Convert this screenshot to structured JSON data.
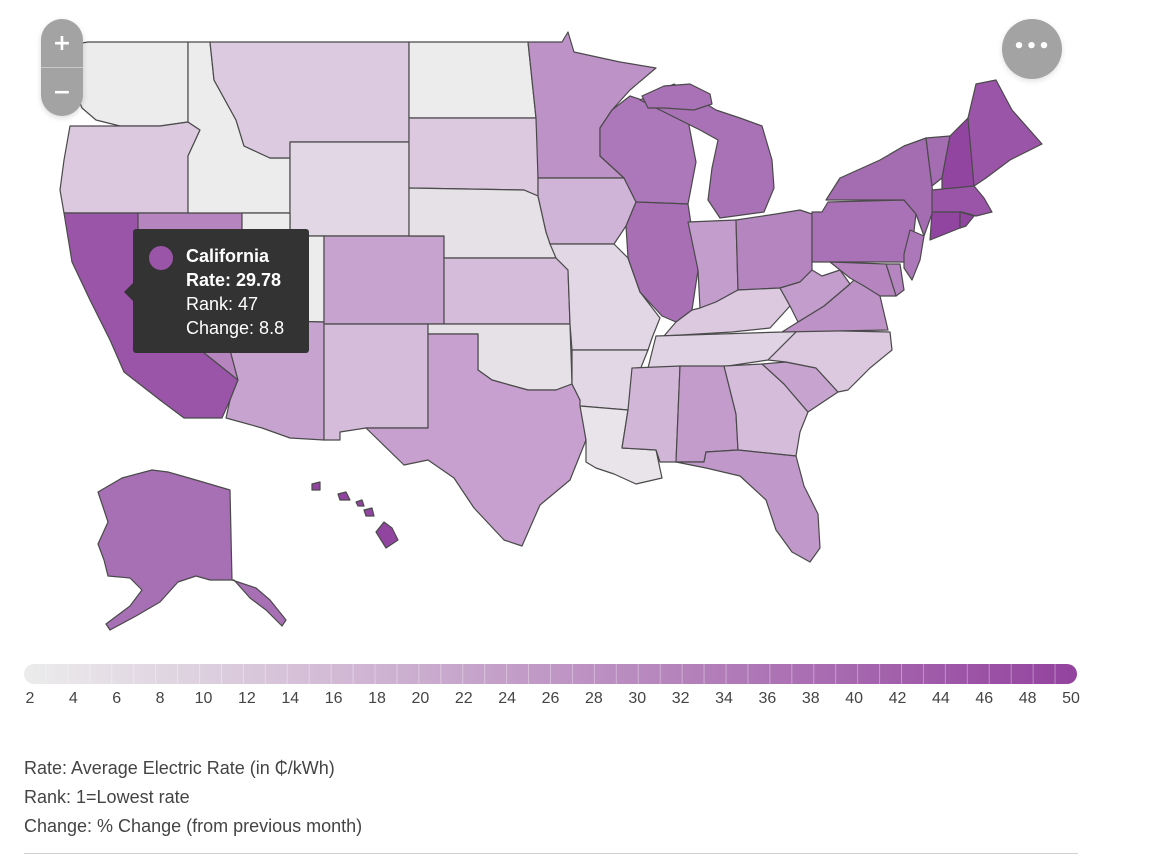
{
  "controls": {
    "zoom_in": "+",
    "zoom_out": "−",
    "menu": "•••"
  },
  "tooltip": {
    "state": "California",
    "rate_line": "Rate: 29.78",
    "rank_line": "Rank: 47",
    "change_line": "Change: 8.8",
    "color": "#9b55a8"
  },
  "legend": {
    "ticks": [
      "2",
      "4",
      "6",
      "8",
      "10",
      "12",
      "14",
      "16",
      "18",
      "20",
      "22",
      "24",
      "26",
      "28",
      "30",
      "32",
      "34",
      "36",
      "38",
      "40",
      "42",
      "44",
      "46",
      "48",
      "50"
    ],
    "color_low": "#ececec",
    "color_high": "#93439e"
  },
  "notes": [
    "Rate: Average Electric Rate (in ₵/kWh)",
    "Rank: 1=Lowest rate",
    "Change: % Change (from previous month)"
  ],
  "map": {
    "selected": "California",
    "state_colors": {
      "Washington": "#ececec",
      "Oregon": "#dcc9e0",
      "California": "#9b55a8",
      "Nevada": "#b685c0",
      "Idaho": "#ececec",
      "Montana": "#dccbe0",
      "Wyoming": "#e2d7e4",
      "Utah": "#ececec",
      "Arizona": "#c7a4cf",
      "Colorado": "#c7a4cf",
      "New Mexico": "#d5bcdb",
      "North Dakota": "#ececec",
      "South Dakota": "#dcc9e0",
      "Nebraska": "#e6e0e7",
      "Kansas": "#d5bcdb",
      "Oklahoma": "#e6e0e7",
      "Texas": "#c7a0cf",
      "Minnesota": "#bd92c6",
      "Iowa": "#d0b4d7",
      "Missouri": "#e2d7e4",
      "Arkansas": "#e2d7e4",
      "Louisiana": "#e8e4e9",
      "Wisconsin": "#ad78b9",
      "Illinois": "#a96fb5",
      "Michigan": "#aa72b6",
      "Indiana": "#c39dcc",
      "Ohio": "#b585bf",
      "Kentucky": "#dcc9e0",
      "Tennessee": "#e0d3e3",
      "Mississippi": "#d2b6d8",
      "Alabama": "#c39ccc",
      "Georgia": "#d5bcdb",
      "Florida": "#c098c9",
      "South Carolina": "#c7a4cf",
      "North Carolina": "#dcc9e0",
      "Virginia": "#bd92c6",
      "West Virginia": "#c39dcc",
      "Pennsylvania": "#aa72b6",
      "New York": "#a46cb1",
      "Vermont": "#a46cb1",
      "New Hampshire": "#9245a0",
      "Maine": "#9b55a8",
      "Massachusetts": "#9b55a8",
      "Connecticut": "#9245a0",
      "Rhode Island": "#9245a0",
      "New Jersey": "#ad78b9",
      "Delaware": "#b585bf",
      "Maryland": "#b685c0",
      "Alaska": "#a76fb4",
      "Hawaii": "#9245a0"
    }
  }
}
